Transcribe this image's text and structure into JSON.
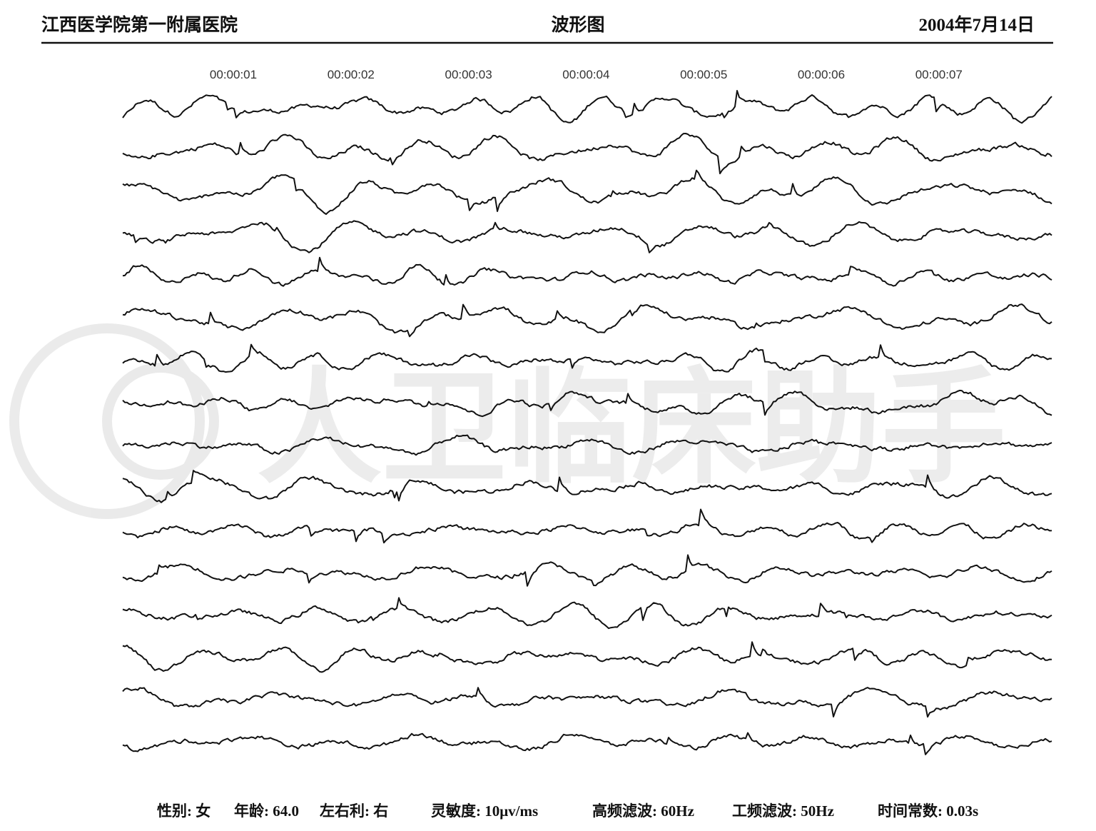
{
  "header": {
    "hospital": "江西医学院第一附属医院",
    "title": "波形图",
    "date": "2004年7月14日"
  },
  "time_marks": [
    "00:00:01",
    "00:00:02",
    "00:00:03",
    "00:00:04",
    "00:00:05",
    "00:00:06",
    "00:00:07"
  ],
  "watermark": "人卫临床助手",
  "footer": [
    "性别: 女",
    "年龄: 64.0",
    "左右利: 右",
    "灵敏度: 10μv/ms",
    "高频滤波: 60Hz",
    "工频滤波: 50Hz",
    "时间常数: 0.03s"
  ]
}
